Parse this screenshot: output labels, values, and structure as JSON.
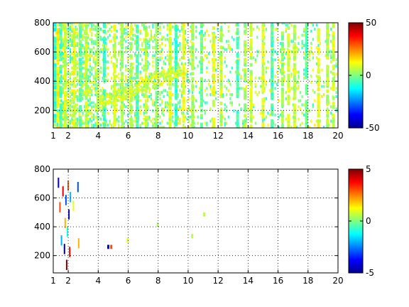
{
  "chart_data": [
    {
      "type": "heatmap",
      "title": "",
      "xlabel": "",
      "ylabel": "",
      "xlim": [
        1,
        20
      ],
      "ylim": [
        80,
        800
      ],
      "x_ticks": [
        "1",
        "2",
        "4",
        "6",
        "8",
        "10",
        "12",
        "14",
        "16",
        "18",
        "20"
      ],
      "x_tick_values": [
        1,
        2,
        4,
        6,
        8,
        10,
        12,
        14,
        16,
        18,
        20
      ],
      "y_ticks": [
        "200",
        "400",
        "600",
        "800"
      ],
      "y_tick_values": [
        200,
        400,
        600,
        800
      ],
      "grid": true,
      "colorbar": {
        "clim": [
          -50,
          50
        ],
        "ticks": [
          "-50",
          "0",
          "50"
        ],
        "tick_values": [
          -50,
          0,
          50
        ],
        "colormap": "jet"
      },
      "density": "dense",
      "dominant_value_range": [
        -10,
        15
      ],
      "x_columns": [
        1.1,
        1.3,
        1.5,
        1.8,
        2.4,
        2.8,
        3.2,
        4.0,
        4.4,
        5.1,
        5.6,
        6.2,
        6.6,
        7.2,
        7.9,
        8.8,
        9.2,
        9.7,
        10.3,
        10.9,
        11.7,
        12.2,
        13.3,
        13.8,
        14.2,
        15.0,
        15.6,
        16.3,
        16.7,
        17.1,
        17.9,
        18.7,
        19.3,
        19.7
      ],
      "column_values": [
        -8,
        12,
        -5,
        8,
        10,
        -3,
        6,
        4,
        -6,
        9,
        3,
        7,
        -4,
        5,
        2,
        8,
        -7,
        11,
        4,
        -2,
        10,
        6,
        -5,
        3,
        7,
        9,
        -4,
        2,
        8,
        6,
        -3,
        10,
        5,
        7
      ]
    },
    {
      "type": "heatmap",
      "title": "",
      "xlabel": "",
      "ylabel": "",
      "xlim": [
        1,
        20
      ],
      "ylim": [
        80,
        800
      ],
      "x_ticks": [
        "1",
        "2",
        "4",
        "6",
        "8",
        "10",
        "12",
        "14",
        "16",
        "18",
        "20"
      ],
      "x_tick_values": [
        1,
        2,
        4,
        6,
        8,
        10,
        12,
        14,
        16,
        18,
        20
      ],
      "y_ticks": [
        "200",
        "400",
        "600",
        "800"
      ],
      "y_tick_values": [
        200,
        400,
        600,
        800
      ],
      "grid": true,
      "colorbar": {
        "clim": [
          -5,
          5
        ],
        "ticks": [
          "-5",
          "0",
          "5"
        ],
        "tick_values": [
          -5,
          0,
          5
        ],
        "colormap": "jet"
      },
      "density": "sparse",
      "dominant_value_range": [
        -5,
        5
      ],
      "points": [
        {
          "x": 1.3,
          "y": 720,
          "v": -4
        },
        {
          "x": 1.4,
          "y": 550,
          "v": 3
        },
        {
          "x": 1.5,
          "y": 320,
          "v": -2
        },
        {
          "x": 1.6,
          "y": 660,
          "v": 4
        },
        {
          "x": 1.7,
          "y": 260,
          "v": -5
        },
        {
          "x": 1.75,
          "y": 440,
          "v": 2
        },
        {
          "x": 1.8,
          "y": 600,
          "v": -3
        },
        {
          "x": 1.85,
          "y": 150,
          "v": 5
        },
        {
          "x": 1.9,
          "y": 380,
          "v": -1
        },
        {
          "x": 1.95,
          "y": 700,
          "v": 3
        },
        {
          "x": 2.0,
          "y": 500,
          "v": -4
        },
        {
          "x": 2.05,
          "y": 240,
          "v": 4
        },
        {
          "x": 2.1,
          "y": 620,
          "v": -2
        },
        {
          "x": 2.3,
          "y": 560,
          "v": 1
        },
        {
          "x": 2.6,
          "y": 690,
          "v": -3
        },
        {
          "x": 2.65,
          "y": 300,
          "v": 2
        },
        {
          "x": 4.6,
          "y": 275,
          "v": -4
        },
        {
          "x": 4.8,
          "y": 275,
          "v": 3
        },
        {
          "x": 5.9,
          "y": 320,
          "v": 1
        },
        {
          "x": 7.9,
          "y": 430,
          "v": 0.5
        },
        {
          "x": 10.2,
          "y": 350,
          "v": 0.5
        },
        {
          "x": 11.0,
          "y": 500,
          "v": 0.5
        }
      ]
    }
  ]
}
